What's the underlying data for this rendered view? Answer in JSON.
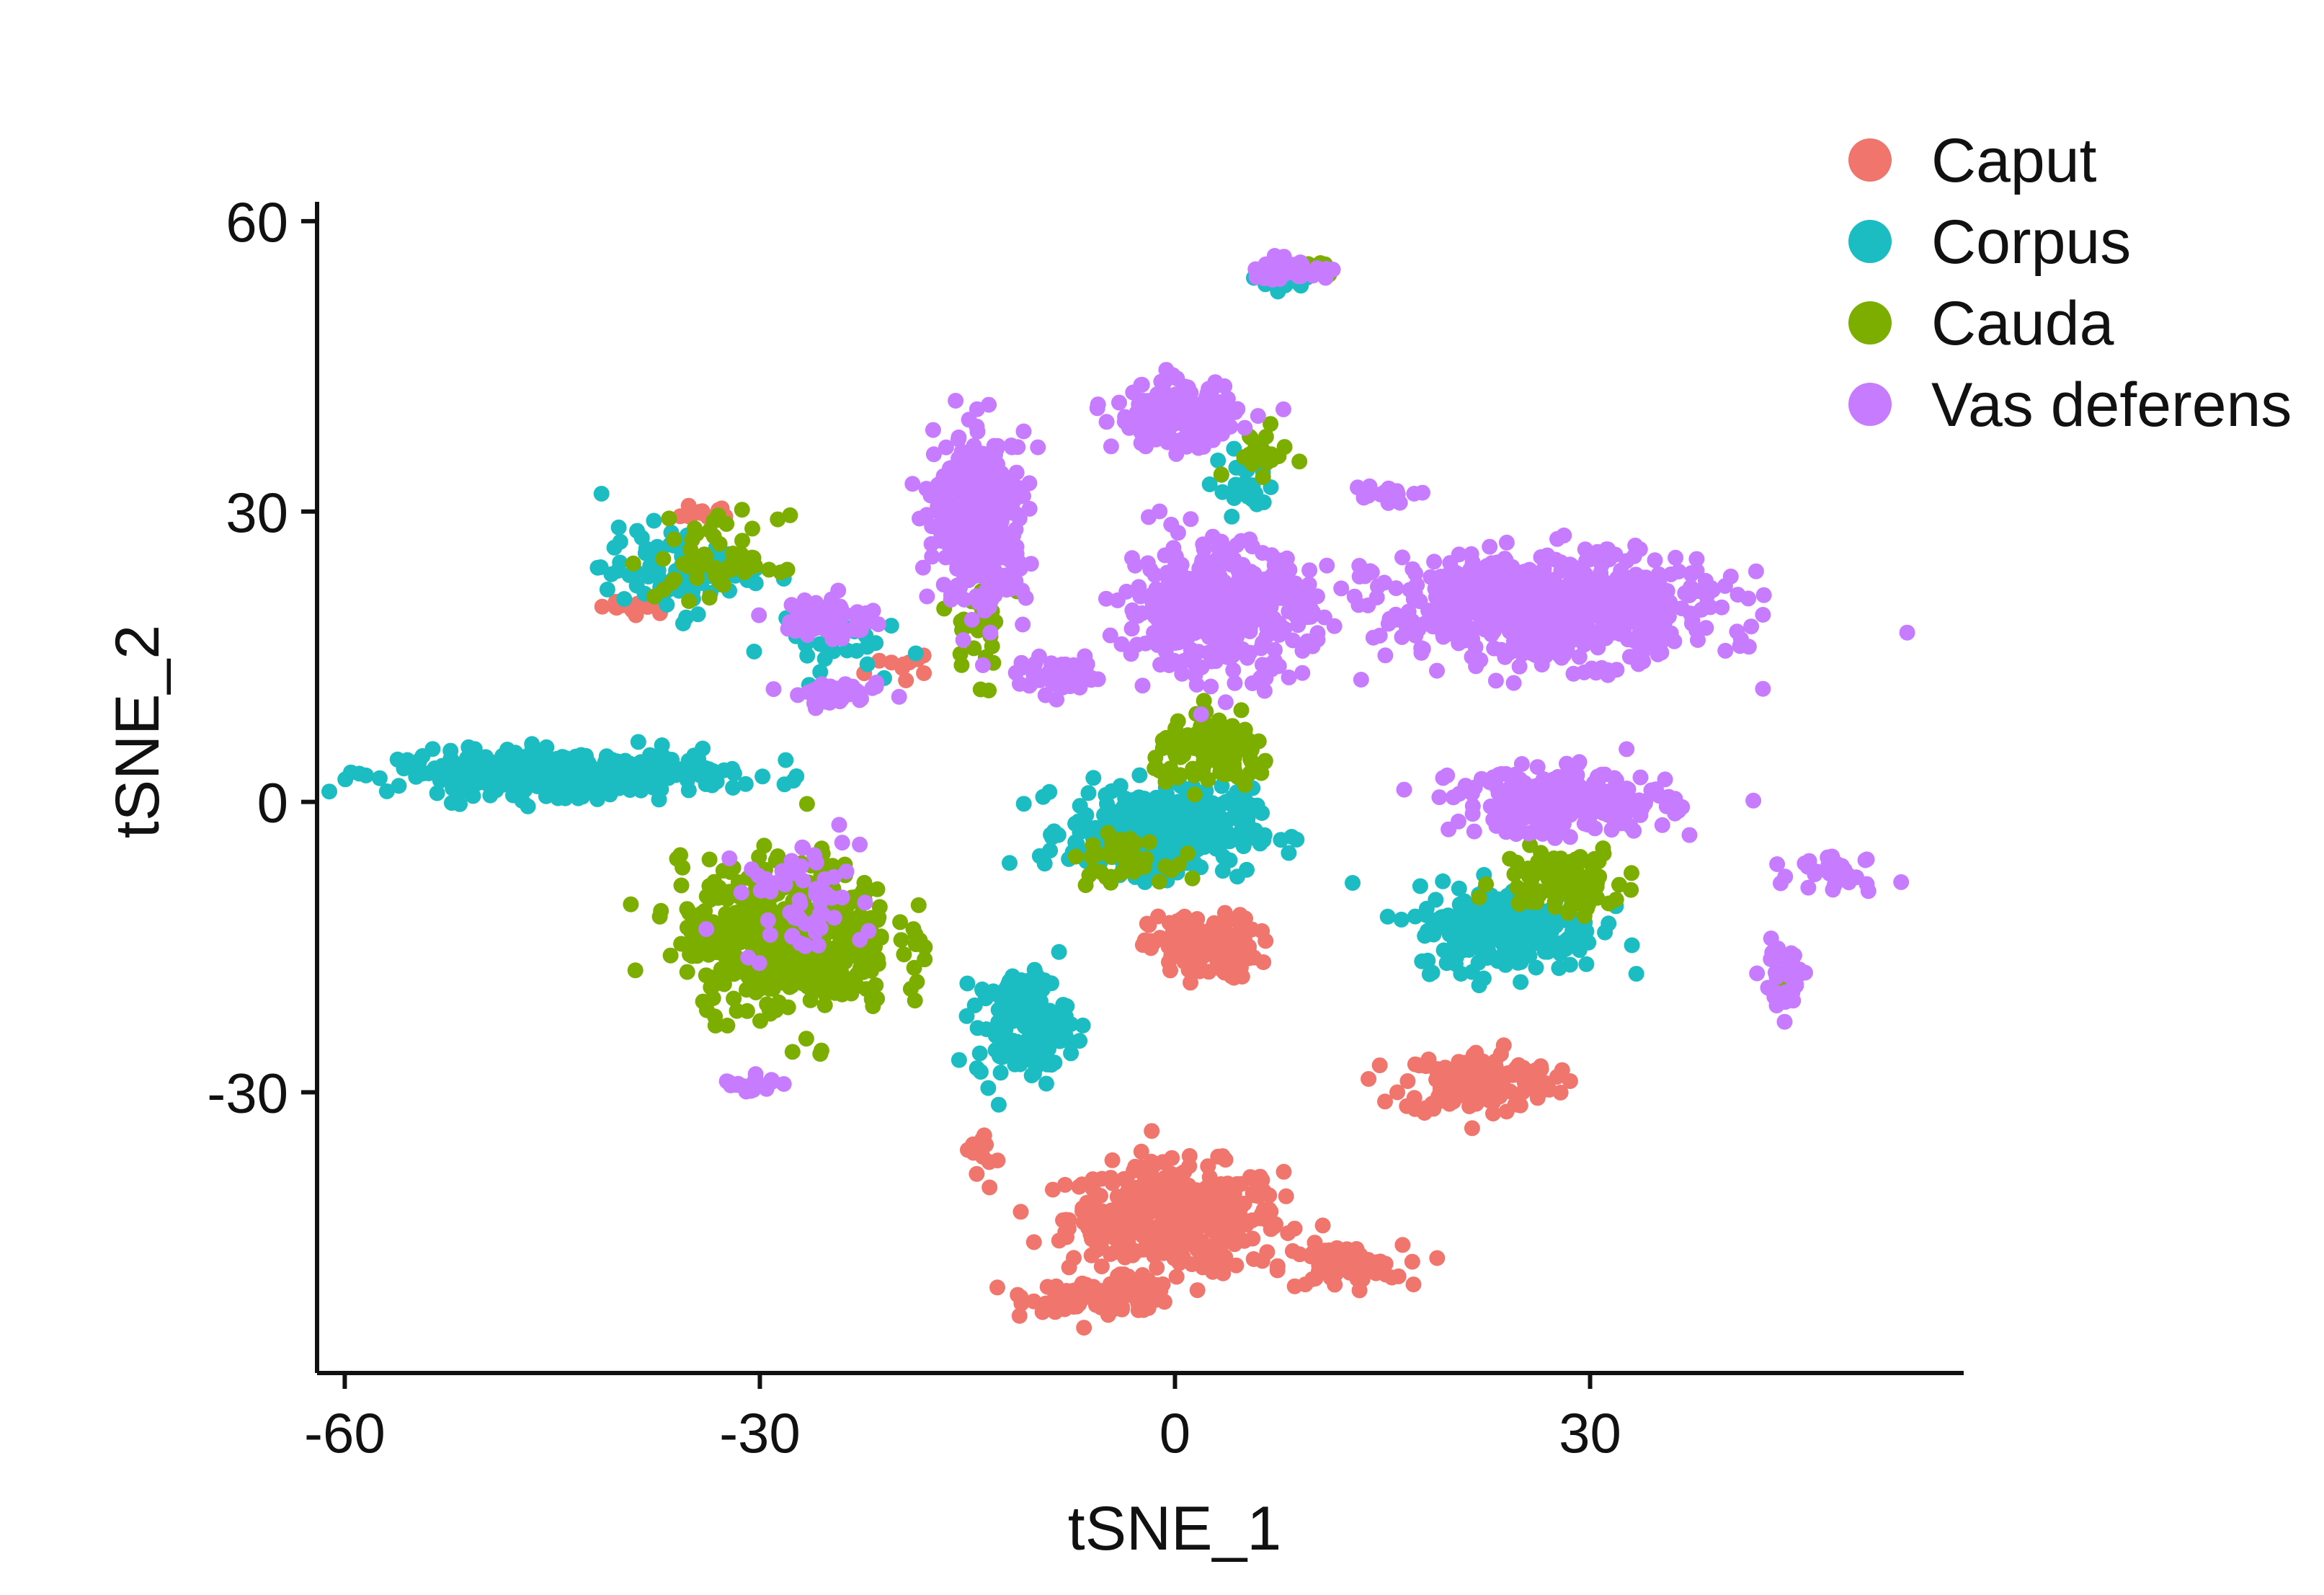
{
  "chart_data": {
    "type": "scatter",
    "title": "",
    "xlabel": "tSNE_1",
    "ylabel": "tSNE_2",
    "xlim": [
      -62,
      57
    ],
    "ylim": [
      -59,
      62
    ],
    "xticks": [
      "-60",
      "-30",
      "0",
      "30"
    ],
    "yticks": [
      "60",
      "30",
      "0",
      "-30"
    ],
    "xtick_values": [
      -60,
      -30,
      0,
      30
    ],
    "ytick_values": [
      60,
      30,
      0,
      -30
    ],
    "grid": false,
    "legend_position": "top-right",
    "series": [
      {
        "name": "Caput",
        "color": "#F0766D",
        "clusters": [
          {
            "center": [
              0,
              -43
            ],
            "spread": [
              7,
              5
            ],
            "n": 420
          },
          {
            "center": [
              -5,
              -51
            ],
            "spread": [
              5,
              1.5
            ],
            "n": 110
          },
          {
            "center": [
              12,
              -48
            ],
            "spread": [
              4,
              2
            ],
            "n": 70
          },
          {
            "center": [
              22,
              -29
            ],
            "spread": [
              5,
              3
            ],
            "n": 160
          },
          {
            "center": [
              2,
              -15
            ],
            "spread": [
              3.5,
              3
            ],
            "n": 130
          },
          {
            "center": [
              -39,
              20
            ],
            "spread": [
              3,
              0.8
            ],
            "n": 14
          },
          {
            "center": [
              -34,
              30
            ],
            "spread": [
              2,
              1
            ],
            "n": 14
          },
          {
            "center": [
              -20,
              14
            ],
            "spread": [
              2,
              1
            ],
            "n": 10
          },
          {
            "center": [
              -14,
              -36
            ],
            "spread": [
              1,
              2
            ],
            "n": 12
          }
        ]
      },
      {
        "name": "Corpus",
        "color": "#1CBDC2",
        "clusters": [
          {
            "center": [
              -44,
              3
            ],
            "spread": [
              11,
              2
            ],
            "n": 360
          },
          {
            "center": [
              -1,
              -3
            ],
            "spread": [
              6,
              4
            ],
            "n": 380
          },
          {
            "center": [
              24,
              -13
            ],
            "spread": [
              6,
              4
            ],
            "n": 260
          },
          {
            "center": [
              -11,
              -23
            ],
            "spread": [
              3,
              5
            ],
            "n": 150
          },
          {
            "center": [
              -36,
              24
            ],
            "spread": [
              5,
              4
            ],
            "n": 90
          },
          {
            "center": [
              -26,
              17
            ],
            "spread": [
              4,
              3
            ],
            "n": 40
          },
          {
            "center": [
              8,
              54
            ],
            "spread": [
              3,
              1
            ],
            "n": 20
          },
          {
            "center": [
              5,
              33
            ],
            "spread": [
              2,
              3
            ],
            "n": 25
          }
        ]
      },
      {
        "name": "Cauda",
        "color": "#7CAE00",
        "clusters": [
          {
            "center": [
              -28,
              -14
            ],
            "spread": [
              7,
              7
            ],
            "n": 520
          },
          {
            "center": [
              3,
              5
            ],
            "spread": [
              4,
              3
            ],
            "n": 120
          },
          {
            "center": [
              28,
              -8
            ],
            "spread": [
              4,
              3
            ],
            "n": 110
          },
          {
            "center": [
              -4,
              -6
            ],
            "spread": [
              3,
              2
            ],
            "n": 40
          },
          {
            "center": [
              -33,
              25
            ],
            "spread": [
              4,
              4
            ],
            "n": 60
          },
          {
            "center": [
              -14,
              18
            ],
            "spread": [
              2,
              5
            ],
            "n": 30
          },
          {
            "center": [
              6,
              36
            ],
            "spread": [
              2,
              2
            ],
            "n": 25
          },
          {
            "center": [
              44,
              -17
            ],
            "spread": [
              1,
              2
            ],
            "n": 10
          },
          {
            "center": [
              10,
              55
            ],
            "spread": [
              2,
              0.8
            ],
            "n": 12
          }
        ]
      },
      {
        "name": "Vas deferens",
        "color": "#C77CFF",
        "clusters": [
          {
            "center": [
              27,
              20
            ],
            "spread": [
              11,
              5
            ],
            "n": 650
          },
          {
            "center": [
              3,
              20
            ],
            "spread": [
              6,
              6
            ],
            "n": 420
          },
          {
            "center": [
              -14,
              29
            ],
            "spread": [
              3,
              8
            ],
            "n": 360
          },
          {
            "center": [
              0,
              40
            ],
            "spread": [
              4,
              3
            ],
            "n": 180
          },
          {
            "center": [
              28,
              0
            ],
            "spread": [
              7,
              3
            ],
            "n": 260
          },
          {
            "center": [
              -25,
              19
            ],
            "spread": [
              3,
              2
            ],
            "n": 80
          },
          {
            "center": [
              -24,
              11
            ],
            "spread": [
              3,
              1
            ],
            "n": 40
          },
          {
            "center": [
              -8,
              13
            ],
            "spread": [
              3,
              1.5
            ],
            "n": 60
          },
          {
            "center": [
              8,
              55
            ],
            "spread": [
              3,
              1
            ],
            "n": 45
          },
          {
            "center": [
              -27,
              -10
            ],
            "spread": [
              4,
              6
            ],
            "n": 60
          },
          {
            "center": [
              44,
              -18
            ],
            "spread": [
              1.5,
              3
            ],
            "n": 40
          },
          {
            "center": [
              48,
              -7
            ],
            "spread": [
              3,
              2
            ],
            "n": 30
          },
          {
            "center": [
              15,
              32
            ],
            "spread": [
              2,
              1
            ],
            "n": 22
          },
          {
            "center": [
              -31,
              -29
            ],
            "spread": [
              2,
              1
            ],
            "n": 18
          }
        ]
      }
    ]
  }
}
